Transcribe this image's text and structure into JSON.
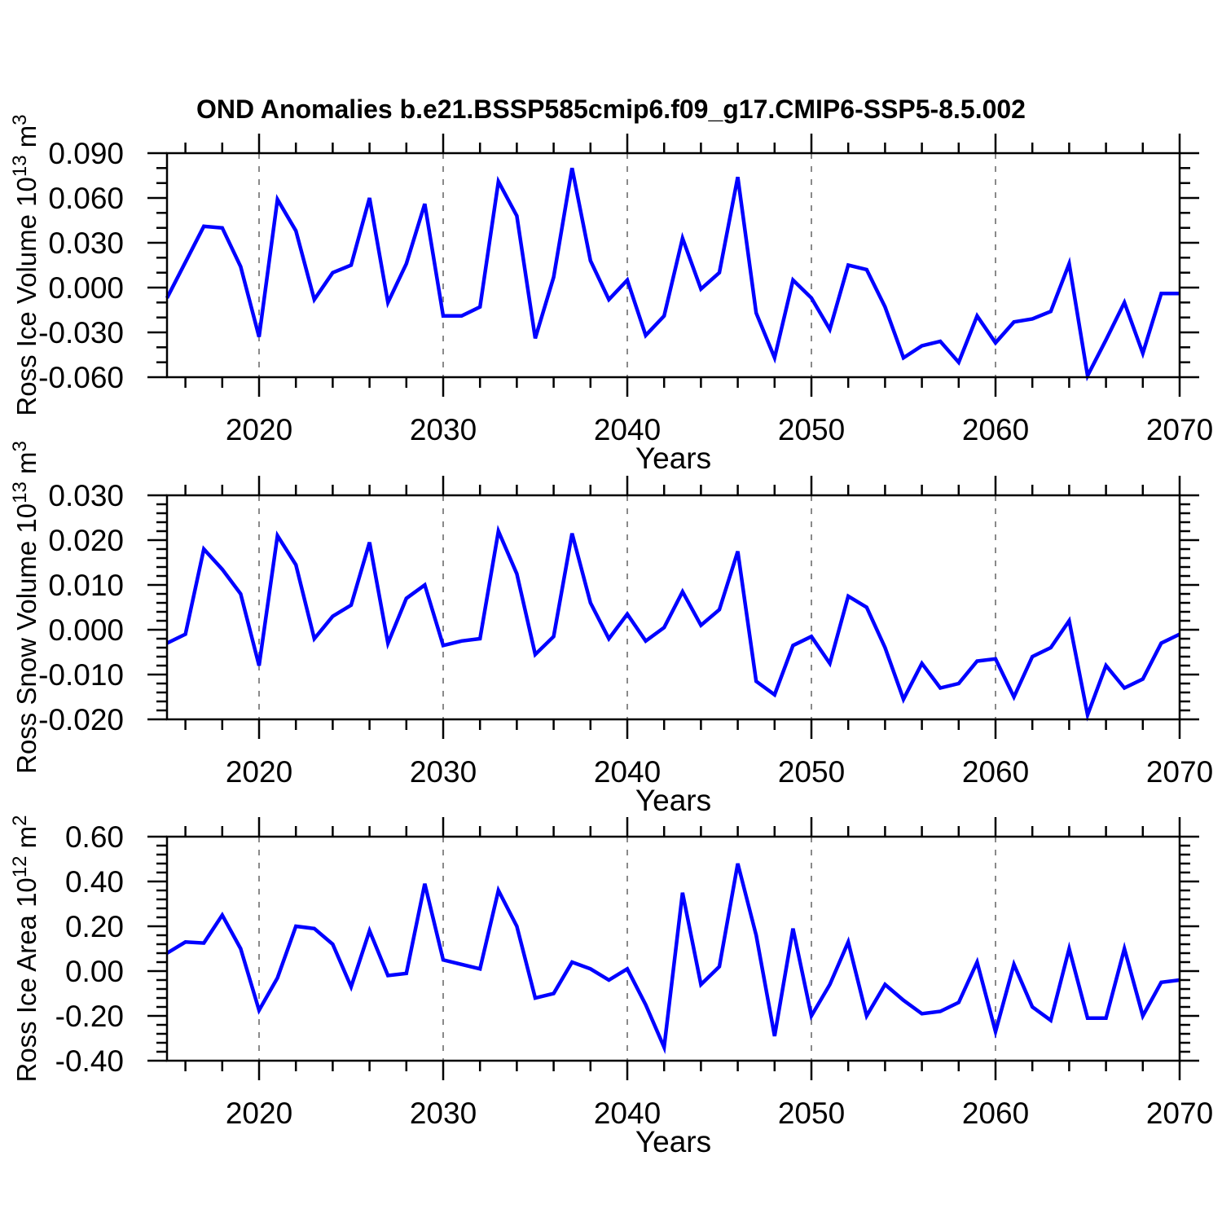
{
  "chart_data": {
    "type": "line",
    "title": "OND Anomalies b.e21.BSSP585cmip6.f09_g17.CMIP6-SSP5-8.5.002",
    "xlabel": "Years",
    "xlim": [
      2015,
      2070
    ],
    "x": [
      2015,
      2016,
      2017,
      2018,
      2019,
      2020,
      2021,
      2022,
      2023,
      2024,
      2025,
      2026,
      2027,
      2028,
      2029,
      2030,
      2031,
      2032,
      2033,
      2034,
      2035,
      2036,
      2037,
      2038,
      2039,
      2040,
      2041,
      2042,
      2043,
      2044,
      2045,
      2046,
      2047,
      2048,
      2049,
      2050,
      2051,
      2052,
      2053,
      2054,
      2055,
      2056,
      2057,
      2058,
      2059,
      2060,
      2061,
      2062,
      2063,
      2064,
      2065,
      2066,
      2067,
      2068,
      2069,
      2070
    ],
    "x_major_tick_labels": [
      "2020",
      "2030",
      "2040",
      "2050",
      "2060",
      "2070"
    ],
    "x_minor_step": 2,
    "x_gridlines": [
      2020,
      2030,
      2040,
      2050,
      2060
    ],
    "grid": "vertical dashed gridlines at decades, outward ticks on all four panel edges",
    "legend": "none",
    "line_color": "#0000FF",
    "grid_color": "#8a8a8a",
    "axis_color": "#000000",
    "series": [
      {
        "id": "ross-ice-volume",
        "name": "Ross Ice Volume",
        "unit": "10^13 m^3",
        "ylabel_segments": [
          {
            "t": "Ross Ice Volume 10"
          },
          {
            "t": "13",
            "sup": true
          },
          {
            "t": " m"
          },
          {
            "t": "3",
            "sup": true
          }
        ],
        "ylim": [
          -0.06,
          0.09
        ],
        "y_major_tick_labels": [
          "0.090",
          "0.060",
          "0.030",
          "0.000",
          "-0.030",
          "-0.060"
        ],
        "y_minor_step": 0.01,
        "values": [
          -0.007,
          0.017,
          0.041,
          0.04,
          0.014,
          -0.033,
          0.059,
          0.038,
          -0.008,
          0.01,
          0.015,
          0.06,
          -0.01,
          0.016,
          0.056,
          -0.019,
          -0.019,
          -0.013,
          0.071,
          0.048,
          -0.034,
          0.007,
          0.08,
          0.018,
          -0.008,
          0.005,
          -0.032,
          -0.019,
          0.033,
          -0.001,
          0.01,
          0.074,
          -0.017,
          -0.047,
          0.005,
          -0.007,
          -0.028,
          0.015,
          0.012,
          -0.013,
          -0.047,
          -0.039,
          -0.036,
          -0.05,
          -0.019,
          -0.037,
          -0.023,
          -0.021,
          -0.016,
          0.016,
          -0.059,
          -0.035,
          -0.01,
          -0.044,
          -0.004,
          -0.004
        ]
      },
      {
        "id": "ross-snow-volume",
        "name": "Ross Snow Volume",
        "unit": "10^13 m^3",
        "ylabel_segments": [
          {
            "t": "Ross Snow Volume 10"
          },
          {
            "t": "13",
            "sup": true
          },
          {
            "t": " m"
          },
          {
            "t": "3",
            "sup": true
          }
        ],
        "ylim": [
          -0.02,
          0.03
        ],
        "y_major_tick_labels": [
          "0.030",
          "0.020",
          "0.010",
          "0.000",
          "-0.010",
          "-0.020"
        ],
        "y_minor_step": 0.002,
        "values": [
          -0.003,
          -0.001,
          0.018,
          0.0135,
          0.008,
          -0.008,
          0.021,
          0.0145,
          -0.002,
          0.003,
          0.0055,
          0.0195,
          -0.003,
          0.007,
          0.01,
          -0.0035,
          -0.0025,
          -0.002,
          0.022,
          0.0125,
          -0.0055,
          -0.0015,
          0.0215,
          0.006,
          -0.002,
          0.0035,
          -0.0025,
          0.0005,
          0.0085,
          0.001,
          0.0045,
          0.0175,
          -0.0115,
          -0.0145,
          -0.0035,
          -0.0015,
          -0.0075,
          0.0075,
          0.005,
          -0.004,
          -0.0155,
          -0.0075,
          -0.013,
          -0.012,
          -0.007,
          -0.0065,
          -0.015,
          -0.006,
          -0.004,
          0.002,
          -0.019,
          -0.008,
          -0.013,
          -0.011,
          -0.003,
          -0.001
        ]
      },
      {
        "id": "ross-ice-area",
        "name": "Ross Ice Area",
        "unit": "10^12 m^2",
        "ylabel_segments": [
          {
            "t": "Ross Ice Area 10"
          },
          {
            "t": "12",
            "sup": true
          },
          {
            "t": " m"
          },
          {
            "t": "2",
            "sup": true
          }
        ],
        "ylim": [
          -0.4,
          0.6
        ],
        "y_major_tick_labels": [
          "0.60",
          "0.40",
          "0.20",
          "0.00",
          "-0.20",
          "-0.40"
        ],
        "y_minor_step": 0.04,
        "values": [
          0.08,
          0.13,
          0.125,
          0.25,
          0.1,
          -0.175,
          -0.03,
          0.2,
          0.19,
          0.12,
          -0.07,
          0.18,
          -0.02,
          -0.01,
          0.39,
          0.05,
          0.03,
          0.01,
          0.36,
          0.2,
          -0.12,
          -0.1,
          0.04,
          0.01,
          -0.04,
          0.01,
          -0.15,
          -0.34,
          0.35,
          -0.06,
          0.02,
          0.48,
          0.16,
          -0.29,
          0.19,
          -0.2,
          -0.06,
          0.13,
          -0.2,
          -0.06,
          -0.13,
          -0.19,
          -0.18,
          -0.14,
          0.04,
          -0.27,
          0.03,
          -0.16,
          -0.22,
          0.1,
          -0.21,
          -0.21,
          0.1,
          -0.2,
          -0.05,
          -0.04
        ]
      }
    ]
  }
}
